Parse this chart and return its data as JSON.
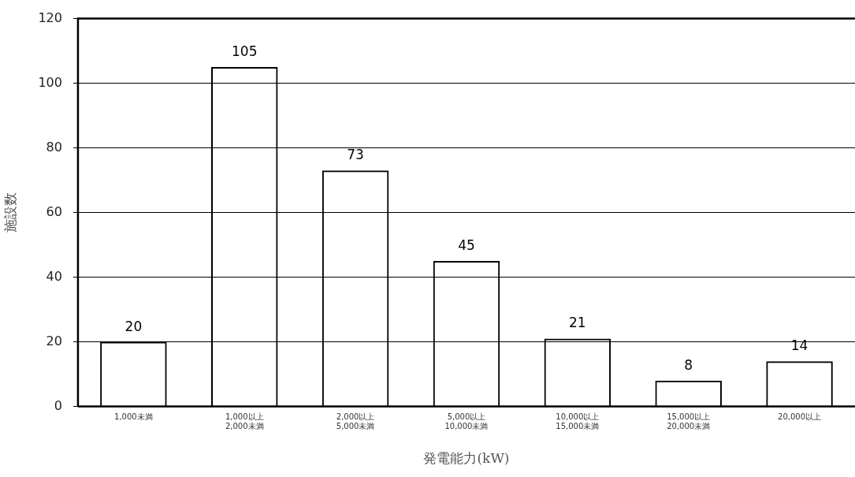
{
  "chart_data": {
    "type": "bar",
    "xlabel": "発電能力(kW)",
    "ylabel": "施設数",
    "categories": [
      "1,000未満",
      "1,000以上\n2,000未満",
      "2,000以上\n5,000未満",
      "5,000以上\n10,000未満",
      "10,000以上\n15,000未満",
      "15,000以上\n20,000未満",
      "20,000以上"
    ],
    "values": [
      20,
      105,
      73,
      45,
      21,
      8,
      14
    ],
    "color": "#000000",
    "ylim": [
      0,
      120
    ],
    "yticks": [
      0,
      20,
      40,
      60,
      80,
      100,
      120
    ],
    "grid": "y",
    "data_labels": true
  }
}
